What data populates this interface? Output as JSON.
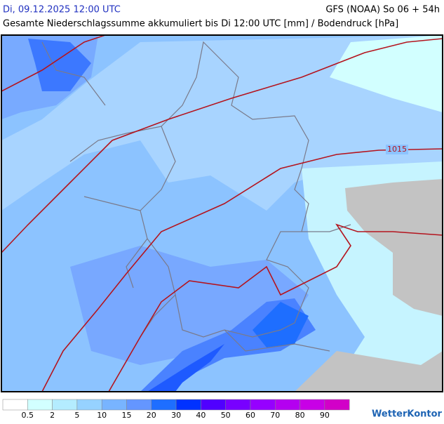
{
  "header": {
    "left": "Di, 09.12.2025 12:00 UTC",
    "right": "GFS (NOAA) So 06 + 54h",
    "subtitle": "Gesamte Niederschlagssumme akkumuliert bis Di 12:00 UTC [mm] / Bodendruck [hPa]"
  },
  "map": {
    "isobar_label": "1015"
  },
  "legend": {
    "colors": [
      "#ffffff",
      "#d2ffff",
      "#b4ecff",
      "#96d2ff",
      "#78b4ff",
      "#6496ff",
      "#1e6eff",
      "#0032ff",
      "#5000ff",
      "#7800ff",
      "#9600ff",
      "#b400f0",
      "#c800e6",
      "#d200c8"
    ],
    "ticks": [
      0.5,
      2,
      5,
      10,
      15,
      20,
      30,
      40,
      50,
      60,
      70,
      80,
      90
    ]
  },
  "logo": "WetterKontor"
}
